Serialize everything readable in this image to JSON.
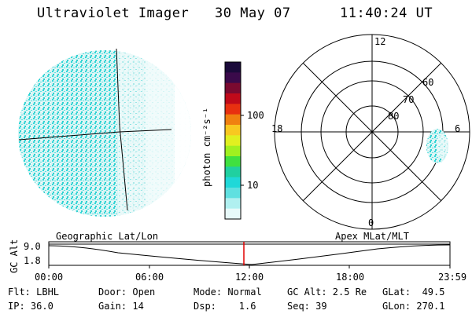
{
  "header": {
    "instrument": "Ultraviolet Imager",
    "date": "30 May 07",
    "time": "11:40:24 UT"
  },
  "colorbar": {
    "unit_label": "photon cm⁻²s⁻¹",
    "ticks": [
      "100",
      "10"
    ],
    "colors": [
      "#1a0a3a",
      "#3a0a4a",
      "#7a0a30",
      "#c00a1a",
      "#e83010",
      "#f08010",
      "#f8c820",
      "#e0f020",
      "#a0f020",
      "#40e040",
      "#20d0a0",
      "#20d8d8",
      "#60e0e0",
      "#b0f0f0",
      "#e8fafa"
    ]
  },
  "polar": {
    "mlt_labels": {
      "top": "12",
      "left": "18",
      "right": "6",
      "bottom": "0"
    },
    "lat_labels": [
      "60",
      "70",
      "80"
    ]
  },
  "timeline": {
    "left_label": "Geographic Lat/Lon",
    "right_label": "Apex MLat/MLT",
    "y_axis_label": "GC Alt",
    "y_ticks": [
      "9.0",
      "1.8"
    ],
    "x_ticks": [
      "00:00",
      "06:00",
      "12:00",
      "18:00",
      "23:59"
    ],
    "marker_color": "#e00000"
  },
  "info": {
    "row1": {
      "filter": "Flt: LBHL",
      "door": "Door: Open",
      "mode": "Mode: Normal",
      "gc_alt": "GC Alt: 2.5 Re",
      "glat": "GLat:  49.5"
    },
    "row2": {
      "ip": "IP: 36.0",
      "gain": "Gain: 14",
      "dsp": "Dsp:    1.6",
      "seq": "Seq: 39",
      "glon": "GLon: 270.1"
    }
  }
}
